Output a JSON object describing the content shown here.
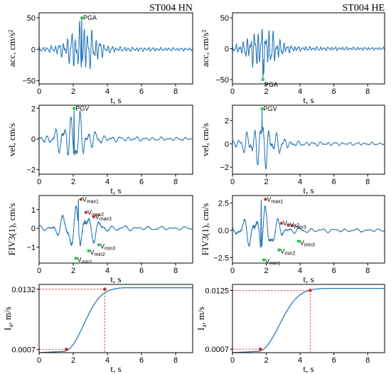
{
  "columns": [
    {
      "title": "ST004 HN"
    },
    {
      "title": "ST004 HE"
    }
  ],
  "colors": {
    "trace": "#2a7ab8",
    "peak_green": "#22cc44",
    "peak_red": "#c0392b",
    "guide_red": "#e03030",
    "axis": "#000000"
  },
  "chart_data": [
    {
      "type": "line",
      "row": 0,
      "col": 0,
      "xlabel": "t, s",
      "ylabel": "acc, cm/s²",
      "xlim": [
        0,
        9
      ],
      "ylim": [
        -55,
        58
      ],
      "xticks": [
        0,
        2,
        4,
        6,
        8
      ],
      "yticks": [
        -50,
        0,
        50
      ],
      "ytick_labels": [
        "−50",
        "0",
        "50"
      ],
      "signal": {
        "seed": 11,
        "peak_t": 2.5,
        "peak_v": 50,
        "amp": 38,
        "freq": 4.2
      },
      "markers": [
        {
          "t": 2.5,
          "v": 50,
          "label": "PGA",
          "color": "green"
        }
      ]
    },
    {
      "type": "line",
      "row": 0,
      "col": 1,
      "xlabel": "t, s",
      "ylabel": "acc, cm/s²",
      "xlim": [
        0,
        9
      ],
      "ylim": [
        -57,
        58
      ],
      "xticks": [
        0,
        2,
        4,
        6,
        8
      ],
      "yticks": [
        -50,
        0,
        50
      ],
      "ytick_labels": [
        "−50",
        "0",
        "50"
      ],
      "signal": {
        "seed": 23,
        "peak_t": 1.8,
        "peak_v": -50,
        "amp": 36,
        "freq": 4.6
      },
      "markers": [
        {
          "t": 1.8,
          "v": -50,
          "label": "PGA",
          "color": "green"
        }
      ]
    },
    {
      "type": "line",
      "row": 1,
      "col": 0,
      "xlabel": "t, s",
      "ylabel": "vel, cm/s",
      "xlim": [
        0,
        9
      ],
      "ylim": [
        -2.3,
        2.2
      ],
      "xticks": [
        0,
        2,
        4,
        6,
        8
      ],
      "yticks": [
        -2,
        0,
        2
      ],
      "ytick_labels": [
        "−2",
        "0",
        "2"
      ],
      "signal": {
        "seed": 37,
        "peak_t": 2.05,
        "peak_v": 2.0,
        "amp": 1.7,
        "freq": 2.1
      },
      "markers": [
        {
          "t": 2.05,
          "v": 2.0,
          "label": "PGV",
          "color": "green"
        }
      ]
    },
    {
      "type": "line",
      "row": 1,
      "col": 1,
      "xlabel": "t, s",
      "ylabel": "vel, cm/s",
      "xlim": [
        0,
        9
      ],
      "ylim": [
        -2.6,
        3.3
      ],
      "xticks": [
        0,
        2,
        4,
        6,
        8
      ],
      "yticks": [
        -2,
        0,
        2
      ],
      "ytick_labels": [
        "−2",
        "0",
        "2"
      ],
      "signal": {
        "seed": 41,
        "peak_t": 1.75,
        "peak_v": 3.0,
        "amp": 2.0,
        "freq": 2.3
      },
      "markers": [
        {
          "t": 1.75,
          "v": 3.0,
          "label": "PGV",
          "color": "green"
        }
      ]
    },
    {
      "type": "line",
      "row": 2,
      "col": 0,
      "xlabel": "t, s",
      "ylabel": "FIV3(1), cm/s",
      "xlim": [
        0,
        9
      ],
      "ylim": [
        -1.85,
        1.75
      ],
      "xticks": [
        0,
        2,
        4,
        6,
        8
      ],
      "yticks": [
        -1,
        0,
        1
      ],
      "ytick_labels": [
        "−1",
        "0",
        "1"
      ],
      "signal": {
        "seed": 53,
        "peak_t": 2.3,
        "peak_v": 1.55,
        "amp": 1.35,
        "freq": 1.4
      },
      "markers": [
        {
          "t": 2.45,
          "v": 1.55,
          "label": "Vmax1",
          "color": "red"
        },
        {
          "t": 2.75,
          "v": 0.85,
          "label": "Vmax2",
          "color": "red"
        },
        {
          "t": 3.2,
          "v": 0.62,
          "label": "Vmax3",
          "color": "red"
        },
        {
          "t": 2.15,
          "v": -1.6,
          "label": "Vmin1",
          "color": "green"
        },
        {
          "t": 2.9,
          "v": -1.2,
          "label": "Vmin2",
          "color": "green"
        },
        {
          "t": 3.5,
          "v": -0.88,
          "label": "Vmin3",
          "color": "green"
        }
      ]
    },
    {
      "type": "line",
      "row": 2,
      "col": 1,
      "xlabel": "t, s",
      "ylabel": "FIV3(1), cm/s",
      "xlim": [
        0,
        9
      ],
      "ylim": [
        -3.0,
        3.2
      ],
      "xticks": [
        0,
        2,
        4,
        6,
        8
      ],
      "yticks": [
        -2.5,
        0,
        2.5
      ],
      "ytick_labels": [
        "−2.5",
        "0.0",
        "2.5"
      ],
      "signal": {
        "seed": 67,
        "peak_t": 1.7,
        "peak_v": 2.8,
        "amp": 2.3,
        "freq": 1.5
      },
      "markers": [
        {
          "t": 1.95,
          "v": 2.85,
          "label": "Vmax1",
          "color": "red"
        },
        {
          "t": 2.9,
          "v": 0.65,
          "label": "Vmax2",
          "color": "red"
        },
        {
          "t": 3.3,
          "v": 0.5,
          "label": "Vmax3",
          "color": "red"
        },
        {
          "t": 1.85,
          "v": -2.7,
          "label": "Vmin1",
          "color": "green"
        },
        {
          "t": 2.75,
          "v": -1.8,
          "label": "Vmin2",
          "color": "green"
        },
        {
          "t": 3.9,
          "v": -1.0,
          "label": "Vmin3",
          "color": "green"
        }
      ]
    },
    {
      "type": "line",
      "row": 3,
      "col": 0,
      "xlabel": "t, s",
      "ylabel": "Ia, m/s",
      "xlim": [
        0,
        9
      ],
      "ylim": [
        0,
        0.0142
      ],
      "xticks": [
        0,
        2,
        4,
        6,
        8
      ],
      "yticks": [
        0.0007,
        0.0132
      ],
      "ytick_labels": [
        "0.0007",
        "0.0132"
      ],
      "husid": {
        "final": 0.0135,
        "t_start": 1.4,
        "t_rise": 2.4,
        "t_end": 4.5
      },
      "points": [
        {
          "t": 1.6,
          "v": 0.0007
        },
        {
          "t": 3.85,
          "v": 0.0132
        }
      ]
    },
    {
      "type": "line",
      "row": 3,
      "col": 1,
      "xlabel": "t, s",
      "ylabel": "Ia, m/s",
      "xlim": [
        0,
        9
      ],
      "ylim": [
        0,
        0.0137
      ],
      "xticks": [
        0,
        2,
        4,
        6,
        8
      ],
      "yticks": [
        0.0007,
        0.0125
      ],
      "ytick_labels": [
        "0.0007",
        "0.0125"
      ],
      "husid": {
        "final": 0.0129,
        "t_start": 1.45,
        "t_rise": 2.6,
        "t_end": 5.2
      },
      "points": [
        {
          "t": 1.65,
          "v": 0.0007
        },
        {
          "t": 4.6,
          "v": 0.0125
        }
      ]
    }
  ]
}
